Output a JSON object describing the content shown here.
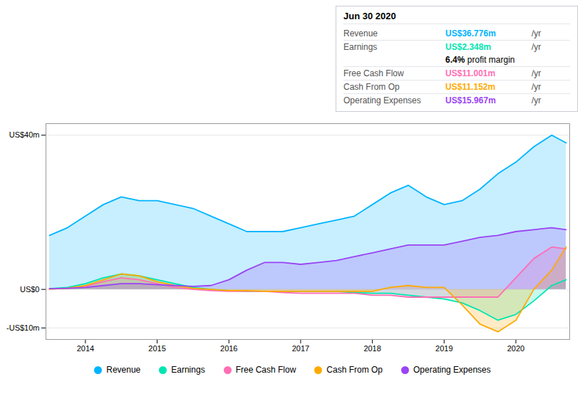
{
  "chart_data": {
    "type": "area",
    "x": [
      2013.5,
      2013.75,
      2014.0,
      2014.25,
      2014.5,
      2014.75,
      2015.0,
      2015.25,
      2015.5,
      2015.75,
      2016.0,
      2016.25,
      2016.5,
      2016.75,
      2017.0,
      2017.25,
      2017.5,
      2017.75,
      2018.0,
      2018.25,
      2018.5,
      2018.75,
      2019.0,
      2019.25,
      2019.5,
      2019.75,
      2020.0,
      2020.25,
      2020.5,
      2020.7
    ],
    "series": [
      {
        "name": "Revenue",
        "color": "#00b4ff",
        "values": [
          14,
          16,
          19,
          22,
          24,
          23,
          23,
          22,
          21,
          19,
          17,
          15,
          15,
          15,
          16,
          17,
          18,
          19,
          22,
          25,
          27,
          24,
          22,
          23,
          26,
          30,
          33,
          37,
          40,
          38
        ]
      },
      {
        "name": "Earnings",
        "color": "#00e5b0",
        "values": [
          0.2,
          0.5,
          1.5,
          3.0,
          4.0,
          3.5,
          2.5,
          1.5,
          0.5,
          0.0,
          -0.3,
          -0.5,
          -0.5,
          -0.5,
          -0.5,
          -0.5,
          -0.5,
          -0.8,
          -1.0,
          -1.0,
          -1.5,
          -2.0,
          -2.5,
          -3.5,
          -5.5,
          -8.0,
          -6.5,
          -3.0,
          1.0,
          2.5
        ]
      },
      {
        "name": "Free Cash Flow",
        "color": "#ff6eb4",
        "values": [
          0.1,
          0.3,
          0.8,
          2.0,
          3.0,
          2.5,
          1.5,
          0.5,
          0.0,
          -0.3,
          -0.5,
          -0.5,
          -0.5,
          -0.8,
          -1.0,
          -1.0,
          -1.0,
          -1.0,
          -1.5,
          -1.5,
          -2.0,
          -2.0,
          -2.0,
          -2.0,
          -2.0,
          -2.0,
          3.0,
          8.0,
          11.0,
          10.5
        ]
      },
      {
        "name": "Cash From Op",
        "color": "#ffaa00",
        "values": [
          0.1,
          0.3,
          1.0,
          2.5,
          4.0,
          3.5,
          2.0,
          1.0,
          0.3,
          0.0,
          -0.3,
          -0.3,
          -0.5,
          -0.5,
          -0.5,
          -0.5,
          -0.5,
          -0.5,
          -0.5,
          0.5,
          1.0,
          0.5,
          0.5,
          -4.0,
          -9.0,
          -11.0,
          -8.0,
          0.0,
          5.0,
          11.0
        ]
      },
      {
        "name": "Operating Expenses",
        "color": "#9b44f5",
        "values": [
          0.2,
          0.3,
          0.5,
          1.0,
          1.5,
          1.5,
          1.2,
          1.0,
          0.8,
          1.0,
          2.5,
          5.0,
          7.0,
          7.0,
          6.5,
          7.0,
          7.5,
          8.5,
          9.5,
          10.5,
          11.5,
          11.5,
          11.5,
          12.5,
          13.5,
          14.0,
          15.0,
          15.5,
          16.0,
          15.5
        ]
      }
    ],
    "xlim": [
      2013.45,
      2020.75
    ],
    "ylim": [
      -13,
      43
    ],
    "xticks": [
      2014,
      2015,
      2016,
      2017,
      2018,
      2019,
      2020
    ],
    "yticks": [
      {
        "value": -10,
        "label": "-US$10m"
      },
      {
        "value": 0,
        "label": "US$0"
      },
      {
        "value": 40,
        "label": "US$40m"
      }
    ],
    "grid": true,
    "legend": "bottom",
    "annotations": {
      "title": "Jun 30 2020",
      "rows": [
        {
          "label": "Revenue",
          "text": "US$36.776m",
          "unit": "/yr",
          "color": "#00b4ff"
        },
        {
          "label": "Earnings",
          "text": "US$2.348m",
          "unit": "/yr",
          "color": "#00e5b0"
        },
        {
          "label": "Free Cash Flow",
          "text": "US$11.001m",
          "unit": "/yr",
          "color": "#ff6eb4"
        },
        {
          "label": "Cash From Op",
          "text": "US$11.152m",
          "unit": "/yr",
          "color": "#ffaa00"
        },
        {
          "label": "Operating Expenses",
          "text": "US$15.967m",
          "unit": "/yr",
          "color": "#9b44f5"
        }
      ],
      "margin": {
        "text": "6.4%",
        "label": "profit margin",
        "after": "Earnings"
      }
    }
  }
}
